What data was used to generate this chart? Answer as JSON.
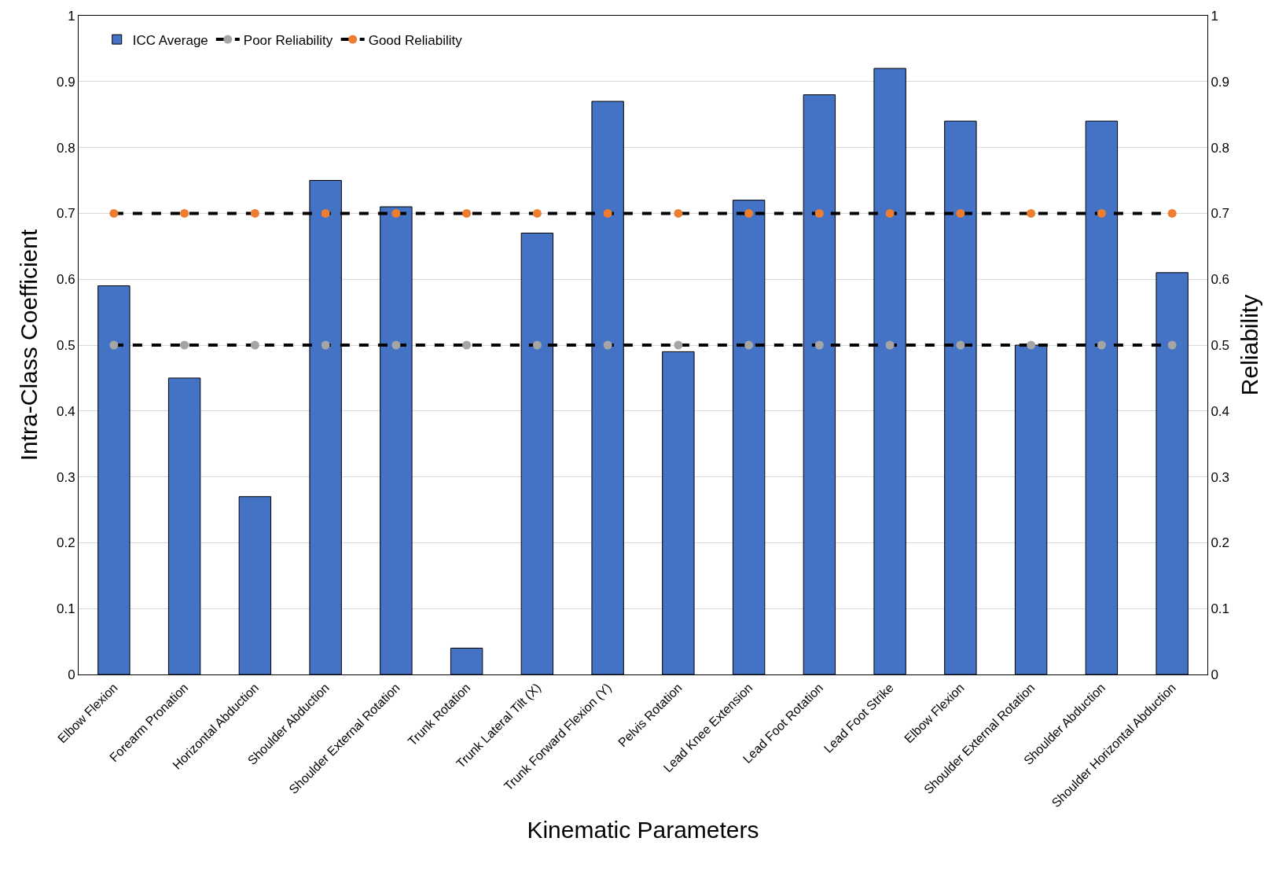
{
  "chart_data": {
    "type": "bar",
    "xlabel": "Kinematic Parameters",
    "ylabel": "Intra-Class Coefficient",
    "y2label": "Reliability",
    "categories": [
      "Elbow Flexion",
      "Forearm Pronation",
      "Horizontal Abduction",
      "Shoulder Abduction",
      "Shoulder External Rotation",
      "Trunk Rotation",
      "Trunk Lateral Tilt (X)",
      "Trunk Forward Flexion (Y)",
      "Pelvis Rotation",
      "Lead Knee Extension",
      "Lead Foot Rotation",
      "Lead Foot Strike",
      "Elbow Flexion",
      "Shoulder External Rotation",
      "Shoulder Abduction",
      "Shoulder Horizontal Abduction"
    ],
    "series": [
      {
        "name": "ICC Average",
        "color": "#4472c4",
        "values": [
          0.59,
          0.45,
          0.27,
          0.75,
          0.71,
          0.04,
          0.67,
          0.87,
          0.49,
          0.72,
          0.88,
          0.92,
          0.84,
          0.5,
          0.84,
          0.61
        ]
      },
      {
        "name": "Poor Reliability",
        "type": "line",
        "axis": "y2",
        "color": "#a5a5a5",
        "marker": "circle",
        "line_style": "dashed",
        "values": [
          0.5,
          0.5,
          0.5,
          0.5,
          0.5,
          0.5,
          0.5,
          0.5,
          0.5,
          0.5,
          0.5,
          0.5,
          0.5,
          0.5,
          0.5,
          0.5
        ]
      },
      {
        "name": "Good Reliability",
        "type": "line",
        "axis": "y2",
        "color": "#ed7d31",
        "marker": "circle",
        "line_style": "dashed",
        "values": [
          0.7,
          0.7,
          0.7,
          0.7,
          0.7,
          0.7,
          0.7,
          0.7,
          0.7,
          0.7,
          0.7,
          0.7,
          0.7,
          0.7,
          0.7,
          0.7
        ]
      }
    ],
    "ylim": [
      0,
      1
    ],
    "yticks": [
      0,
      0.1,
      0.2,
      0.3,
      0.4,
      0.5,
      0.6,
      0.7,
      0.8,
      0.9,
      1
    ],
    "y2lim": [
      0,
      1
    ],
    "y2ticks": [
      0,
      0.1,
      0.2,
      0.3,
      0.4,
      0.5,
      0.6,
      0.7,
      0.8,
      0.9,
      1
    ],
    "grid": "y",
    "legend": "top left"
  }
}
